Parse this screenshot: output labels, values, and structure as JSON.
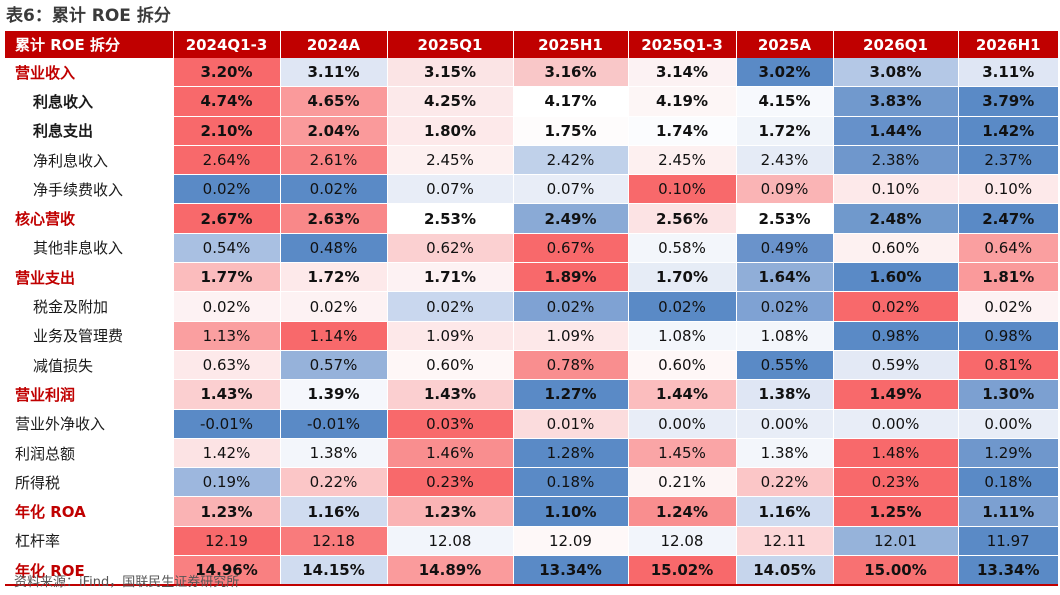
{
  "title": "表6：累计 ROE 拆分",
  "source": "资料来源：iFind，国联民生证券研究所",
  "columns": [
    "累计 ROE 拆分",
    "2024Q1-3",
    "2024A",
    "2025Q1",
    "2025H1",
    "2025Q1-3",
    "2025A",
    "2026Q1",
    "2026H1"
  ],
  "rows": [
    {
      "label": "营业收入",
      "level": 0,
      "bold": true,
      "label_red": true,
      "values": [
        "3.20%",
        "3.11%",
        "3.15%",
        "3.16%",
        "3.14%",
        "3.02%",
        "3.08%",
        "3.11%"
      ],
      "colors": [
        "#f8696b",
        "#dfe6f4",
        "#fbe4e5",
        "#f9c7c8",
        "#fcf2f3",
        "#5a8ac6",
        "#b4c8e6",
        "#dfe6f4"
      ]
    },
    {
      "label": "利息收入",
      "level": 1,
      "bold": true,
      "label_red": false,
      "values": [
        "4.74%",
        "4.65%",
        "4.25%",
        "4.17%",
        "4.19%",
        "4.15%",
        "3.83%",
        "3.79%"
      ],
      "colors": [
        "#f8696b",
        "#fa9a9b",
        "#fce9ea",
        "#ffffff",
        "#fdf6f6",
        "#f7f9fd",
        "#7199cd",
        "#5a8ac6"
      ]
    },
    {
      "label": "利息支出",
      "level": 1,
      "bold": true,
      "label_red": false,
      "values": [
        "2.10%",
        "2.04%",
        "1.80%",
        "1.75%",
        "1.74%",
        "1.72%",
        "1.44%",
        "1.42%"
      ],
      "colors": [
        "#f8696b",
        "#fa9a9b",
        "#fde9ea",
        "#fefcfc",
        "#fbfcfe",
        "#f0f4fa",
        "#6691ca",
        "#5a8ac6"
      ]
    },
    {
      "label": "净利息收入",
      "level": 1,
      "bold": false,
      "label_red": false,
      "values": [
        "2.64%",
        "2.61%",
        "2.45%",
        "2.42%",
        "2.45%",
        "2.43%",
        "2.38%",
        "2.37%"
      ],
      "colors": [
        "#f8696b",
        "#f98283",
        "#fdf0f0",
        "#c0d1ea",
        "#fdf0f0",
        "#e5ebf6",
        "#6f97cc",
        "#5a8ac6"
      ]
    },
    {
      "label": "净手续费收入",
      "level": 1,
      "bold": false,
      "label_red": false,
      "values": [
        "0.02%",
        "0.02%",
        "0.07%",
        "0.07%",
        "0.10%",
        "0.09%",
        "0.10%",
        "0.10%"
      ],
      "colors": [
        "#5a8ac6",
        "#5a8ac6",
        "#e8edf7",
        "#e8edf7",
        "#f8696b",
        "#fab4b5",
        "#fde9ea",
        "#fde9ea"
      ]
    },
    {
      "label": "核心营收",
      "level": 0,
      "bold": true,
      "label_red": true,
      "values": [
        "2.67%",
        "2.63%",
        "2.53%",
        "2.49%",
        "2.56%",
        "2.53%",
        "2.48%",
        "2.47%"
      ],
      "colors": [
        "#f8696b",
        "#f98889",
        "#ffffff",
        "#8aaad6",
        "#fce3e4",
        "#ffffff",
        "#7099cc",
        "#5a8ac6"
      ]
    },
    {
      "label": "其他非息收入",
      "level": 1,
      "bold": false,
      "label_red": false,
      "values": [
        "0.54%",
        "0.48%",
        "0.62%",
        "0.67%",
        "0.58%",
        "0.49%",
        "0.60%",
        "0.64%"
      ],
      "colors": [
        "#a9c0e2",
        "#5a8ac6",
        "#fbd0d1",
        "#f8696b",
        "#f3f6fb",
        "#6a93cb",
        "#fdf1f1",
        "#fa9fa0"
      ]
    },
    {
      "label": "营业支出",
      "level": 0,
      "bold": true,
      "label_red": true,
      "values": [
        "1.77%",
        "1.72%",
        "1.71%",
        "1.89%",
        "1.70%",
        "1.64%",
        "1.60%",
        "1.81%"
      ],
      "colors": [
        "#fbbcbd",
        "#fde9ea",
        "#fdf2f3",
        "#f8696b",
        "#e6ecf6",
        "#90aed8",
        "#5a8ac6",
        "#fa9a9b"
      ]
    },
    {
      "label": "税金及附加",
      "level": 1,
      "bold": false,
      "label_red": false,
      "values": [
        "0.02%",
        "0.02%",
        "0.02%",
        "0.02%",
        "0.02%",
        "0.02%",
        "0.02%",
        "0.02%"
      ],
      "colors": [
        "#fdf2f3",
        "#fdf2f3",
        "#c9d7ee",
        "#7fa2d3",
        "#5a8ac6",
        "#7fa2d3",
        "#f8696b",
        "#fdf2f3"
      ]
    },
    {
      "label": "业务及管理费",
      "level": 1,
      "bold": false,
      "label_red": false,
      "values": [
        "1.13%",
        "1.14%",
        "1.09%",
        "1.09%",
        "1.08%",
        "1.08%",
        "0.98%",
        "0.98%"
      ],
      "colors": [
        "#fa9fa0",
        "#f8696b",
        "#fde8e9",
        "#fde8e9",
        "#f3f6fb",
        "#f3f6fb",
        "#5a8ac6",
        "#5a8ac6"
      ]
    },
    {
      "label": "减值损失",
      "level": 1,
      "bold": false,
      "label_red": false,
      "values": [
        "0.63%",
        "0.57%",
        "0.60%",
        "0.78%",
        "0.60%",
        "0.55%",
        "0.59%",
        "0.81%"
      ],
      "colors": [
        "#fde9ea",
        "#96b2da",
        "#fef7f7",
        "#f98e8f",
        "#fef7f7",
        "#5a8ac6",
        "#e3e9f5",
        "#f8696b"
      ]
    },
    {
      "label": "营业利润",
      "level": 0,
      "bold": true,
      "label_red": true,
      "values": [
        "1.43%",
        "1.39%",
        "1.43%",
        "1.27%",
        "1.44%",
        "1.38%",
        "1.49%",
        "1.30%"
      ],
      "colors": [
        "#fbcfd0",
        "#f5f7fc",
        "#fbcfd0",
        "#5a8ac6",
        "#fbbdbe",
        "#dfe6f4",
        "#f8696b",
        "#7ca0d1"
      ]
    },
    {
      "label": "营业外净收入",
      "level": 0,
      "bold": false,
      "label_red": false,
      "values": [
        "-0.01%",
        "-0.01%",
        "0.03%",
        "0.01%",
        "0.00%",
        "0.00%",
        "0.00%",
        "0.00%"
      ],
      "colors": [
        "#5a8ac6",
        "#5a8ac6",
        "#f8696b",
        "#fbdcdd",
        "#e8edf7",
        "#e8edf7",
        "#e8edf7",
        "#e8edf7"
      ]
    },
    {
      "label": "利润总额",
      "level": 0,
      "bold": false,
      "label_red": false,
      "values": [
        "1.42%",
        "1.38%",
        "1.46%",
        "1.28%",
        "1.45%",
        "1.38%",
        "1.48%",
        "1.29%"
      ],
      "colors": [
        "#fce3e4",
        "#f3f6fb",
        "#f98e8f",
        "#5a8ac6",
        "#faa5a6",
        "#f3f6fb",
        "#f8696b",
        "#6f97cc"
      ]
    },
    {
      "label": "所得税",
      "level": 0,
      "bold": false,
      "label_red": false,
      "values": [
        "0.19%",
        "0.22%",
        "0.23%",
        "0.18%",
        "0.21%",
        "0.22%",
        "0.23%",
        "0.18%"
      ],
      "colors": [
        "#9db7de",
        "#fbc6c7",
        "#f8696b",
        "#5a8ac6",
        "#fdf5f5",
        "#fbc6c7",
        "#f8696b",
        "#5a8ac6"
      ]
    },
    {
      "label": "年化 ROA",
      "level": 0,
      "bold": true,
      "label_red": true,
      "values": [
        "1.23%",
        "1.16%",
        "1.23%",
        "1.10%",
        "1.24%",
        "1.16%",
        "1.25%",
        "1.11%"
      ],
      "colors": [
        "#fab3b4",
        "#d0dcf0",
        "#fab3b4",
        "#5a8ac6",
        "#f98e8f",
        "#d0dcf0",
        "#f8696b",
        "#7ca0d1"
      ]
    },
    {
      "label": "杠杆率",
      "level": 0,
      "bold": false,
      "label_red": false,
      "values": [
        "12.19",
        "12.18",
        "12.08",
        "12.09",
        "12.08",
        "12.11",
        "12.01",
        "11.97"
      ],
      "colors": [
        "#f8696b",
        "#f97b7c",
        "#f2f5fb",
        "#fef8f8",
        "#f2f5fb",
        "#fcd6d7",
        "#96b3da",
        "#5a8ac6"
      ]
    },
    {
      "label": "年化 ROE",
      "level": 0,
      "bold": true,
      "label_red": true,
      "values": [
        "14.96%",
        "14.15%",
        "14.89%",
        "13.34%",
        "15.02%",
        "14.05%",
        "15.00%",
        "13.34%"
      ],
      "colors": [
        "#f98081",
        "#d0dcf0",
        "#fa9b9c",
        "#5a8ac6",
        "#f8696b",
        "#c6d5ec",
        "#f87172",
        "#5a8ac6"
      ]
    }
  ]
}
